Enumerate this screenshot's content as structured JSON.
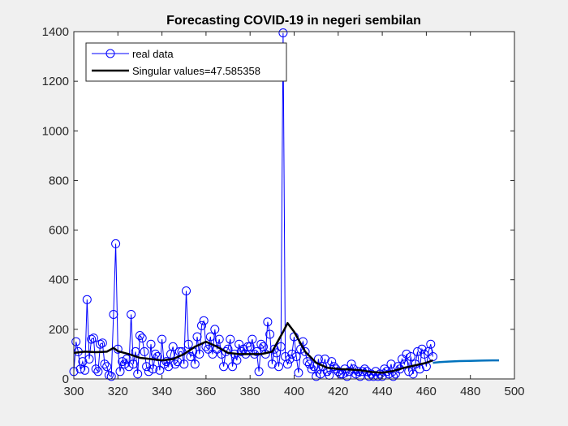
{
  "chart_data": {
    "type": "line",
    "title": "Forecasting COVID-19 in negeri sembilan",
    "xlabel": "",
    "ylabel": "",
    "xlim": [
      300,
      500
    ],
    "ylim": [
      0,
      1400
    ],
    "xticks": [
      300,
      320,
      340,
      360,
      380,
      400,
      420,
      440,
      460,
      480,
      500
    ],
    "yticks": [
      0,
      200,
      400,
      600,
      800,
      1000,
      1200,
      1400
    ],
    "grid": false,
    "legend_position": "top-left",
    "colors": {
      "real": "#0000ff",
      "smooth": "#000000",
      "forecast": "#0072bd"
    },
    "series": [
      {
        "name": "real data",
        "style": "line-circle",
        "x": [
          300,
          301,
          302,
          303,
          304,
          305,
          306,
          307,
          308,
          309,
          310,
          311,
          312,
          313,
          314,
          315,
          316,
          317,
          318,
          319,
          320,
          321,
          322,
          323,
          324,
          325,
          326,
          327,
          328,
          329,
          330,
          331,
          332,
          333,
          334,
          335,
          336,
          337,
          338,
          339,
          340,
          341,
          342,
          343,
          344,
          345,
          346,
          347,
          348,
          349,
          350,
          351,
          352,
          353,
          354,
          355,
          356,
          357,
          358,
          359,
          360,
          361,
          362,
          363,
          364,
          365,
          366,
          367,
          368,
          369,
          370,
          371,
          372,
          373,
          374,
          375,
          376,
          377,
          378,
          379,
          380,
          381,
          382,
          383,
          384,
          385,
          386,
          387,
          388,
          389,
          390,
          391,
          392,
          393,
          394,
          395,
          396,
          397,
          398,
          399,
          400,
          401,
          402,
          403,
          404,
          405,
          406,
          407,
          408,
          409,
          410,
          411,
          412,
          413,
          414,
          415,
          416,
          417,
          418,
          419,
          420,
          421,
          422,
          423,
          424,
          425,
          426,
          427,
          428,
          429,
          430,
          431,
          432,
          433,
          434,
          435,
          436,
          437,
          438,
          439,
          440,
          441,
          442,
          443,
          444,
          445,
          446,
          447,
          448,
          449,
          450,
          451,
          452,
          453,
          454,
          455,
          456,
          457,
          458,
          459,
          460,
          461,
          462,
          463
        ],
        "y": [
          30,
          150,
          110,
          40,
          70,
          35,
          320,
          80,
          160,
          165,
          40,
          30,
          140,
          145,
          60,
          50,
          15,
          10,
          260,
          545,
          120,
          30,
          70,
          60,
          80,
          50,
          260,
          60,
          110,
          20,
          175,
          165,
          110,
          50,
          30,
          140,
          40,
          100,
          90,
          35,
          160,
          60,
          70,
          50,
          100,
          130,
          60,
          70,
          110,
          110,
          60,
          355,
          140,
          90,
          110,
          60,
          170,
          100,
          215,
          235,
          130,
          120,
          170,
          100,
          200,
          120,
          160,
          100,
          50,
          110,
          120,
          160,
          50,
          100,
          75,
          140,
          110,
          120,
          100,
          130,
          130,
          160,
          100,
          110,
          30,
          140,
          130,
          100,
          230,
          180,
          60,
          120,
          105,
          50,
          130,
          1395,
          90,
          60,
          80,
          100,
          170,
          90,
          25,
          120,
          150,
          110,
          70,
          60,
          40,
          50,
          10,
          80,
          20,
          50,
          80,
          30,
          15,
          70,
          50,
          40,
          30,
          20,
          20,
          40,
          10,
          30,
          60,
          40,
          20,
          30,
          10,
          30,
          40,
          30,
          10,
          20,
          10,
          30,
          10,
          20,
          10,
          40,
          30,
          20,
          60,
          10,
          20,
          50,
          40,
          80,
          60,
          100,
          30,
          90,
          20,
          60,
          110,
          40,
          120,
          100,
          50,
          110,
          140,
          90
        ]
      },
      {
        "name": "Singular values=47.585358",
        "style": "line-thick",
        "x": [
          300,
          305,
          310,
          315,
          318,
          320,
          325,
          330,
          335,
          340,
          345,
          350,
          355,
          360,
          365,
          370,
          375,
          380,
          385,
          390,
          395,
          397,
          400,
          405,
          410,
          415,
          420,
          425,
          430,
          435,
          440,
          445,
          450,
          455,
          460,
          463
        ],
        "y": [
          105,
          110,
          108,
          110,
          125,
          112,
          100,
          85,
          80,
          75,
          80,
          100,
          130,
          150,
          130,
          105,
          100,
          100,
          100,
          110,
          190,
          225,
          190,
          110,
          65,
          45,
          40,
          38,
          35,
          28,
          25,
          32,
          45,
          55,
          65,
          75
        ]
      },
      {
        "name": "",
        "style": "line-forecast",
        "x": [
          463,
          466,
          470,
          475,
          480,
          485,
          490,
          493
        ],
        "y": [
          65,
          68,
          70,
          72,
          73,
          74,
          75,
          75
        ]
      }
    ]
  }
}
